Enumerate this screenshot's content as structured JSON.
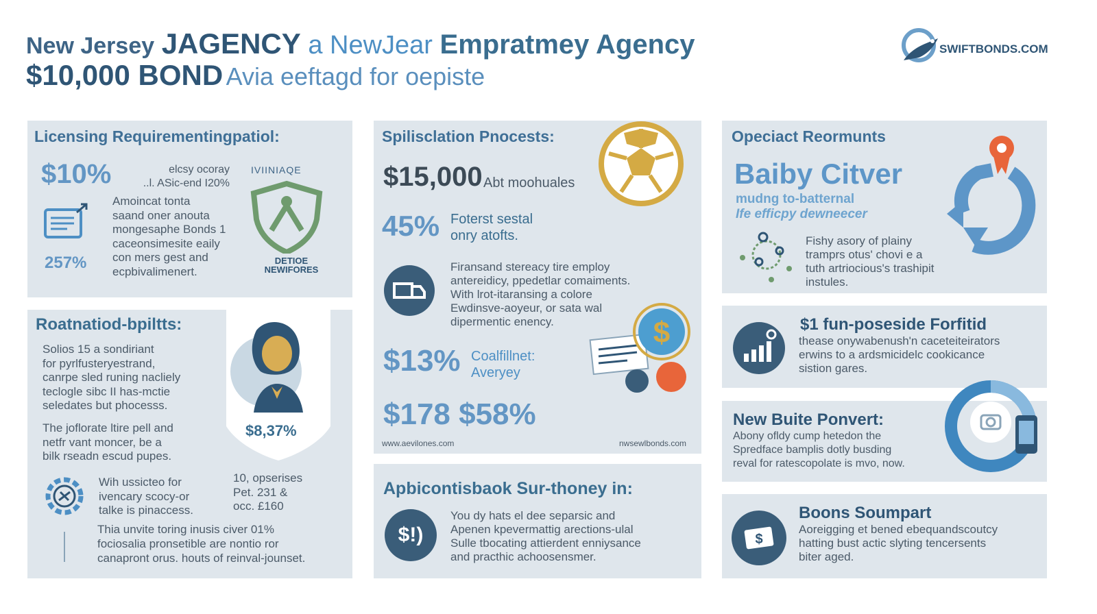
{
  "header": {
    "title_part1": "New Jersey",
    "title_part2": "JAGENCY",
    "title_part3": "a NewJear",
    "title_part4": "Empratmey Agency",
    "subtitle_part1": "$10,000 BOND",
    "subtitle_part2": "Avia eeftagd for oepiste",
    "logo_text": "SWIFTBONDS.COM"
  },
  "licensing": {
    "heading": "Licensing Requirementingpatiol:",
    "stat1": "$10%",
    "stat1_note_line1": "elcsy ocoray",
    "stat1_note_line2": "..l. ASic-end I20%",
    "body": [
      "Amoincat tonta",
      "saand oner anouta",
      "mongesaphe Bonds 1",
      "caceonsimesite eaily",
      "con mers gest and",
      "ecpbivalimenert."
    ],
    "stat2": "257%",
    "badge_top": "IVIINIAQE",
    "badge_bottom_line1": "DETIOE",
    "badge_bottom_line2": "NEWIFORES"
  },
  "application": {
    "heading": "Spilisclation Pnocests:",
    "amount": "$15,000",
    "amount_note": "Abt moohuales",
    "pct": "45%",
    "pct_note_line1": "Foterst sestal",
    "pct_note_line2": "onry atofts.",
    "body": [
      "Firansand stereacy tire employ",
      "antereidicy, ppedetlar comaiments.",
      "With lrot-itaransing a colore",
      "Ewdinsve-aoyeur, or sata wal",
      "dipermentic enency."
    ],
    "stat3": "$13%",
    "stat3_note_line1": "Coalfillnet:",
    "stat3_note_line2": "Averyey",
    "stat4": "$178 $58%",
    "footer_left": "www.aevilones.com",
    "footer_right": "nwsewlbonds.com"
  },
  "special": {
    "heading": "Opeciact Reormunts",
    "big_title": "Baiby Citver",
    "sub1": "mudng to-batternal",
    "sub2": "Ife efficpy dewneecer",
    "body": [
      "Fishy asory of plainy",
      "tramprs otus' chovi e a",
      "tuth artriocious's trashipit",
      "instules."
    ]
  },
  "forfeit": {
    "heading": "$1 fun-poseside Forfitid",
    "body": [
      "thease onywabenush'n caceteiteirators",
      "erwins to a ardsmicidelc cookicance",
      "sistion gares."
    ]
  },
  "renewal": {
    "heading": "Roatnatiod-bpiltts:",
    "body1": [
      "Solios 15 a sondiriant",
      "for pyrlfusteryestrand,",
      "canrpe sled runing nacliely",
      "teclogle sibc II has-mctie",
      "seledates but phocesss."
    ],
    "body2": [
      "The joflorate ltire pell and",
      "netfr vant moncer, be a",
      "bilk rseadn escud pupes."
    ],
    "portrait_value": "$8,37%",
    "gear_text": [
      "Wih ussicteo for",
      "ivencary scocy-or",
      "talke is pinaccess."
    ],
    "side_text": [
      "10, opserises",
      "Pet. 231 &",
      "occ. £160"
    ],
    "footer": [
      "Thia unvite toring inusis civer 01%",
      "fociosalia pronsetible are nontio ror",
      "canapront orus. houts of reinval-jounset."
    ]
  },
  "bonus": {
    "heading": "New Buite Ponvert:",
    "body": [
      "Abony ofldy cump hetedon the",
      "Spredface bamplis dotly busding",
      "reval for ratescopolate is mvo, now."
    ]
  },
  "agency": {
    "heading": "Apbicontisbaok Sur-thoney in:",
    "icon_text": "$!)",
    "body": [
      "You dy hats el dee separsic and",
      "Apenen kpevermattig arections-ulal",
      "Sulle tbocating attierdent enniysance",
      "and practhic achoosensmer."
    ]
  },
  "support": {
    "heading": "Boons Soumpart",
    "body": [
      "Aoreigging et bened ebequandscoutcy",
      "hatting bust actic slyting tencersents",
      "biter aged."
    ]
  },
  "colors": {
    "panel": "#dfe6ec",
    "navy": "#2f5575",
    "accent_blue": "#4d8fc4",
    "gold": "#d4aa44",
    "orange": "#e8653a",
    "green": "#6f9b6e"
  }
}
